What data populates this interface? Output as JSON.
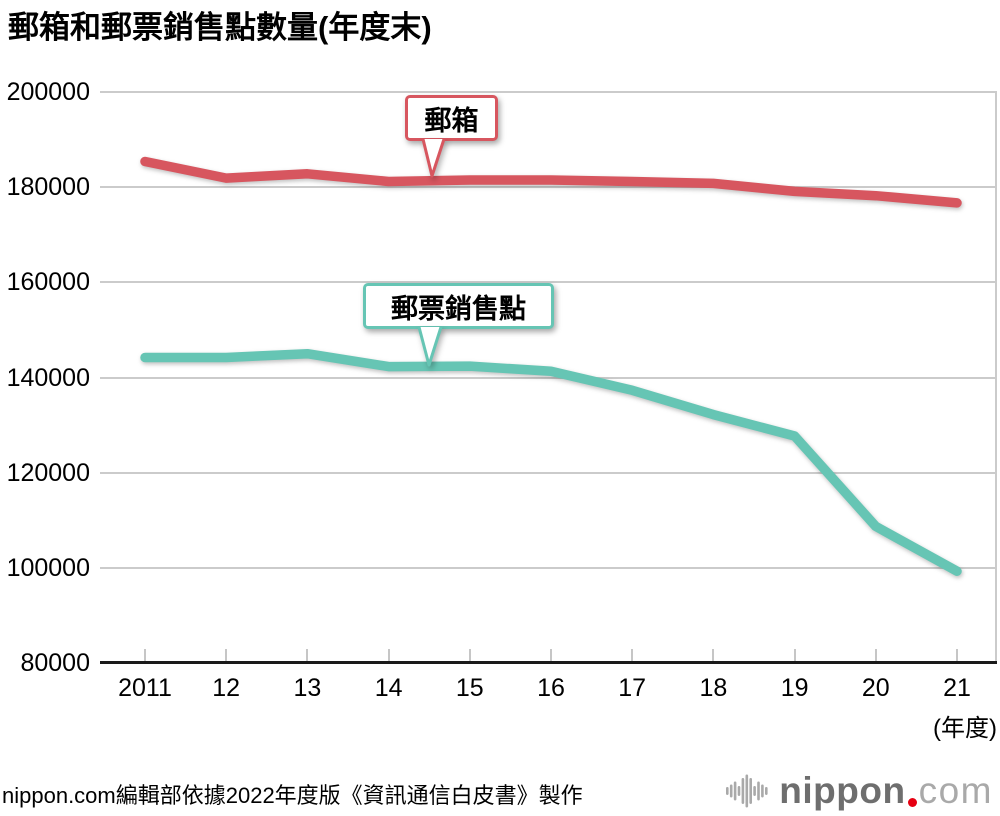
{
  "header": {
    "title": "郵箱和郵票銷售點數量(年度末)"
  },
  "colors": {
    "mailbox_red": "#d7565f",
    "stamp_teal": "#66c5b4",
    "grid": "#cbcbcb",
    "tick": "#c6c6c6",
    "axis": "#1a1a1a",
    "text": "#000000",
    "logo_gray": "#6e6e6e",
    "logo_light": "#a9a9a9",
    "logo_dot": "#e60012"
  },
  "icons": {
    "logo_mark": "sound-wave-bars",
    "logo_dot": "red-circle"
  },
  "callouts": {
    "mailbox": {
      "label": "郵箱"
    },
    "stamp": {
      "label": "郵票銷售點"
    }
  },
  "axes": {
    "y": {
      "tick_labels": [
        "200000",
        "180000",
        "160000",
        "140000",
        "120000",
        "100000",
        "80000"
      ]
    },
    "x": {
      "tick_labels": [
        "2011",
        "12",
        "13",
        "14",
        "15",
        "16",
        "17",
        "18",
        "19",
        "20",
        "21"
      ],
      "unit_label": "(年度)"
    }
  },
  "footer": {
    "source_note": "nippon.com編輯部依據2022年度版《資訊通信白皮書》製作",
    "logo": {
      "word": "nippon",
      "dot": ".",
      "tld": "com"
    }
  },
  "chart_data": {
    "type": "line",
    "title": "郵箱和郵票銷售點數量(年度末)",
    "categories": [
      "2011",
      "12",
      "13",
      "14",
      "15",
      "16",
      "17",
      "18",
      "19",
      "20",
      "21"
    ],
    "x_unit": "年度",
    "ylim": [
      80000,
      200000
    ],
    "y_ticks": [
      200000,
      180000,
      160000,
      140000,
      120000,
      100000,
      80000
    ],
    "grid": "horizontal-only",
    "legend_position": "inline-callouts",
    "series": [
      {
        "name": "郵箱",
        "color": "#d7565f",
        "values": [
          185400,
          181900,
          182800,
          181200,
          181500,
          181500,
          181200,
          180800,
          179100,
          178200,
          176700
        ]
      },
      {
        "name": "郵票銷售點",
        "color": "#66c5b4",
        "values": [
          144200,
          144200,
          145000,
          142300,
          142400,
          141300,
          137300,
          132200,
          127700,
          108700,
          99300
        ]
      }
    ]
  }
}
